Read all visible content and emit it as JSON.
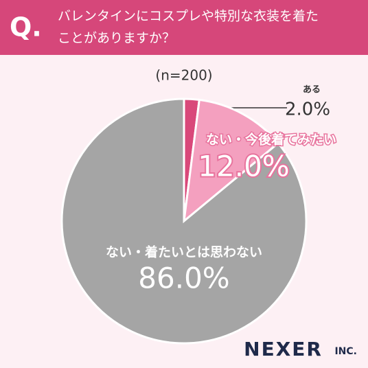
{
  "chart_data": {
    "type": "pie",
    "marker": "Q.",
    "title": [
      "バレンタインにコスプレや特別な衣装を着た",
      "ことがありますか？"
    ],
    "subtitle": "(n=200)",
    "categories": [
      "ある",
      "ない・今後着てみたい",
      "ない・着たいとは思わない"
    ],
    "values": [
      2.0,
      12.0,
      86.0
    ],
    "value_labels": [
      "2.0%",
      "12.0%",
      "86.0%"
    ],
    "colors": [
      "#d9487a",
      "#f4a0bf",
      "#a5a5a5"
    ],
    "logo": "NEXER",
    "logo_suffix": "INC."
  }
}
